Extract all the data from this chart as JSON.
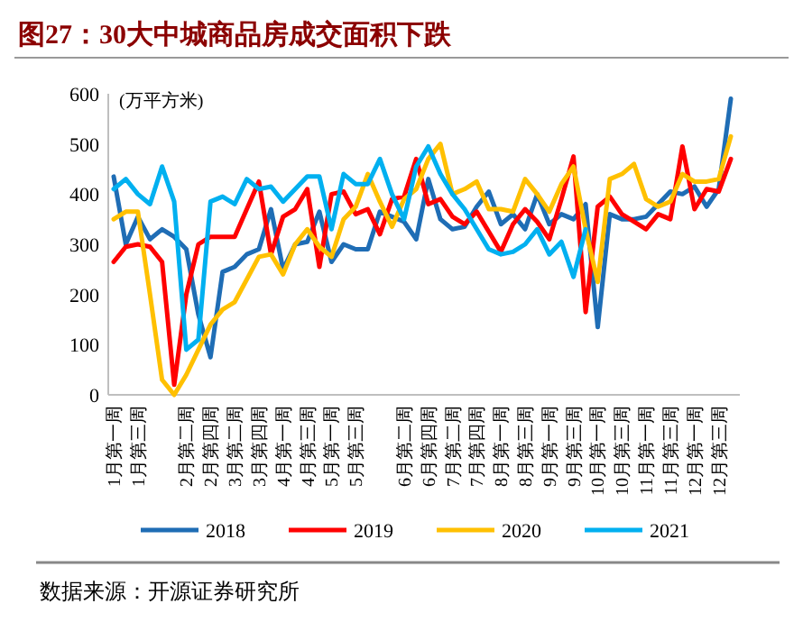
{
  "chart_data": {
    "type": "line",
    "title": "图27：30大中城商品房成交面积下跌",
    "ylabel": "(万平方米)",
    "categories": [
      "1月第一周",
      null,
      "1月第三周",
      null,
      null,
      null,
      "2月第二周",
      null,
      "2月第四周",
      null,
      "3月第二周",
      null,
      "3月第四周",
      null,
      "4月第一周",
      null,
      "4月第三周",
      null,
      "5月第一周",
      null,
      "5月第三周",
      null,
      null,
      null,
      "6月第二周",
      null,
      "6月第四周",
      null,
      "7月第二周",
      null,
      "7月第四周",
      null,
      "8月第一周",
      null,
      "8月第三周",
      null,
      "9月第一周",
      null,
      "9月第三周",
      null,
      "10月第一周",
      null,
      "10月第三周",
      null,
      "11月第一周",
      null,
      "11月第三周",
      null,
      "12月第一周",
      null,
      "12月第三周",
      null
    ],
    "series": [
      {
        "name": "2018",
        "color": "#1f6db5",
        "values": [
          435,
          300,
          355,
          310,
          330,
          315,
          290,
          160,
          75,
          245,
          255,
          280,
          290,
          370,
          250,
          300,
          305,
          365,
          265,
          300,
          290,
          290,
          365,
          355,
          345,
          310,
          430,
          350,
          330,
          335,
          375,
          405,
          340,
          360,
          330,
          400,
          340,
          360,
          350,
          380,
          135,
          360,
          350,
          350,
          355,
          380,
          405,
          400,
          415,
          375,
          410,
          590
        ]
      },
      {
        "name": "2019",
        "color": "#ff0000",
        "values": [
          265,
          295,
          300,
          295,
          265,
          20,
          200,
          300,
          315,
          315,
          315,
          370,
          425,
          280,
          355,
          370,
          410,
          255,
          400,
          405,
          360,
          370,
          320,
          390,
          395,
          470,
          380,
          390,
          355,
          340,
          365,
          325,
          285,
          340,
          370,
          345,
          310,
          390,
          475,
          165,
          375,
          395,
          360,
          345,
          330,
          360,
          350,
          495,
          370,
          410,
          405,
          470
        ]
      },
      {
        "name": "2020",
        "color": "#ffc000",
        "values": [
          350,
          365,
          365,
          200,
          30,
          0,
          40,
          90,
          140,
          170,
          185,
          230,
          275,
          280,
          240,
          300,
          330,
          295,
          275,
          350,
          375,
          440,
          385,
          335,
          390,
          410,
          470,
          500,
          400,
          410,
          425,
          370,
          370,
          365,
          430,
          400,
          365,
          420,
          455,
          330,
          225,
          430,
          440,
          460,
          390,
          375,
          385,
          440,
          425,
          425,
          430,
          515
        ]
      },
      {
        "name": "2021",
        "color": "#00b0f0",
        "values": [
          410,
          430,
          400,
          380,
          455,
          385,
          90,
          110,
          385,
          395,
          380,
          430,
          410,
          415,
          385,
          410,
          435,
          435,
          330,
          440,
          420,
          420,
          470,
          400,
          350,
          455,
          495,
          440,
          400,
          370,
          330,
          290,
          280,
          285,
          300,
          330,
          280,
          305,
          235,
          330,
          null,
          null,
          null,
          null,
          null,
          null,
          null,
          null,
          null,
          null,
          null,
          null
        ]
      }
    ],
    "ylim": [
      0,
      600
    ],
    "yticks": [
      0,
      100,
      200,
      300,
      400,
      500,
      600
    ],
    "legend": "bottom",
    "annotations": [
      "数据来源：开源证券研究所"
    ]
  }
}
